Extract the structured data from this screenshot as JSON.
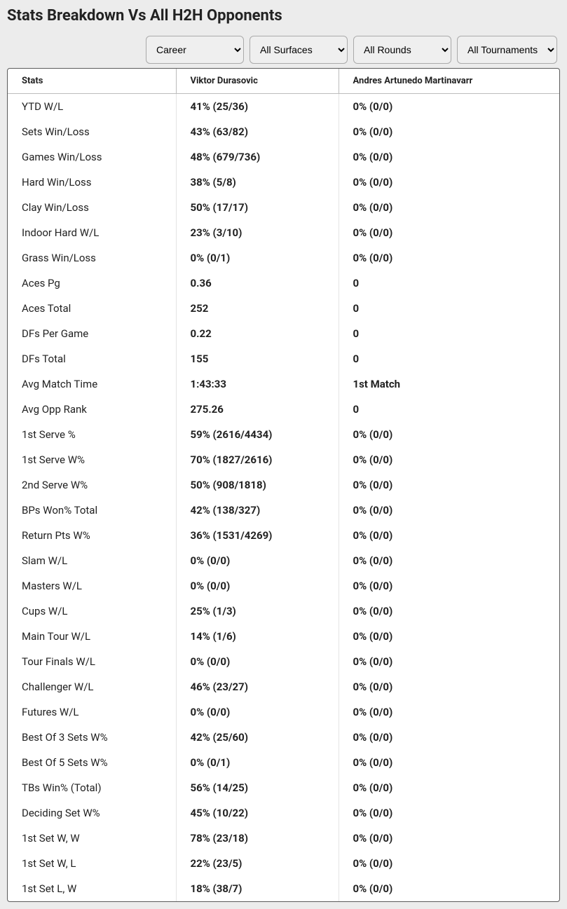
{
  "title": "Stats Breakdown Vs All H2H Opponents",
  "filters": {
    "time": "Career",
    "surface": "All Surfaces",
    "round": "All Rounds",
    "tournament": "All Tournaments"
  },
  "columns": {
    "stats": "Stats",
    "player1": "Viktor Durasovic",
    "player2": "Andres Artunedo Martinavarr"
  },
  "rows": [
    {
      "label": "YTD W/L",
      "p1": "41% (25/36)",
      "p2": "0% (0/0)"
    },
    {
      "label": "Sets Win/Loss",
      "p1": "43% (63/82)",
      "p2": "0% (0/0)"
    },
    {
      "label": "Games Win/Loss",
      "p1": "48% (679/736)",
      "p2": "0% (0/0)"
    },
    {
      "label": "Hard Win/Loss",
      "p1": "38% (5/8)",
      "p2": "0% (0/0)"
    },
    {
      "label": "Clay Win/Loss",
      "p1": "50% (17/17)",
      "p2": "0% (0/0)"
    },
    {
      "label": "Indoor Hard W/L",
      "p1": "23% (3/10)",
      "p2": "0% (0/0)"
    },
    {
      "label": "Grass Win/Loss",
      "p1": "0% (0/1)",
      "p2": "0% (0/0)"
    },
    {
      "label": "Aces Pg",
      "p1": "0.36",
      "p2": "0"
    },
    {
      "label": "Aces Total",
      "p1": "252",
      "p2": "0"
    },
    {
      "label": "DFs Per Game",
      "p1": "0.22",
      "p2": "0"
    },
    {
      "label": "DFs Total",
      "p1": "155",
      "p2": "0"
    },
    {
      "label": "Avg Match Time",
      "p1": "1:43:33",
      "p2": "1st Match"
    },
    {
      "label": "Avg Opp Rank",
      "p1": "275.26",
      "p2": "0"
    },
    {
      "label": "1st Serve %",
      "p1": "59% (2616/4434)",
      "p2": "0% (0/0)"
    },
    {
      "label": "1st Serve W%",
      "p1": "70% (1827/2616)",
      "p2": "0% (0/0)"
    },
    {
      "label": "2nd Serve W%",
      "p1": "50% (908/1818)",
      "p2": "0% (0/0)"
    },
    {
      "label": "BPs Won% Total",
      "p1": "42% (138/327)",
      "p2": "0% (0/0)"
    },
    {
      "label": "Return Pts W%",
      "p1": "36% (1531/4269)",
      "p2": "0% (0/0)"
    },
    {
      "label": "Slam W/L",
      "p1": "0% (0/0)",
      "p2": "0% (0/0)"
    },
    {
      "label": "Masters W/L",
      "p1": "0% (0/0)",
      "p2": "0% (0/0)"
    },
    {
      "label": "Cups W/L",
      "p1": "25% (1/3)",
      "p2": "0% (0/0)"
    },
    {
      "label": "Main Tour W/L",
      "p1": "14% (1/6)",
      "p2": "0% (0/0)"
    },
    {
      "label": "Tour Finals W/L",
      "p1": "0% (0/0)",
      "p2": "0% (0/0)"
    },
    {
      "label": "Challenger W/L",
      "p1": "46% (23/27)",
      "p2": "0% (0/0)"
    },
    {
      "label": "Futures W/L",
      "p1": "0% (0/0)",
      "p2": "0% (0/0)"
    },
    {
      "label": "Best Of 3 Sets W%",
      "p1": "42% (25/60)",
      "p2": "0% (0/0)"
    },
    {
      "label": "Best Of 5 Sets W%",
      "p1": "0% (0/1)",
      "p2": "0% (0/0)"
    },
    {
      "label": "TBs Win% (Total)",
      "p1": "56% (14/25)",
      "p2": "0% (0/0)"
    },
    {
      "label": "Deciding Set W%",
      "p1": "45% (10/22)",
      "p2": "0% (0/0)"
    },
    {
      "label": "1st Set W, W",
      "p1": "78% (23/18)",
      "p2": "0% (0/0)"
    },
    {
      "label": "1st Set W, L",
      "p1": "22% (23/5)",
      "p2": "0% (0/0)"
    },
    {
      "label": "1st Set L, W",
      "p1": "18% (38/7)",
      "p2": "0% (0/0)"
    }
  ]
}
